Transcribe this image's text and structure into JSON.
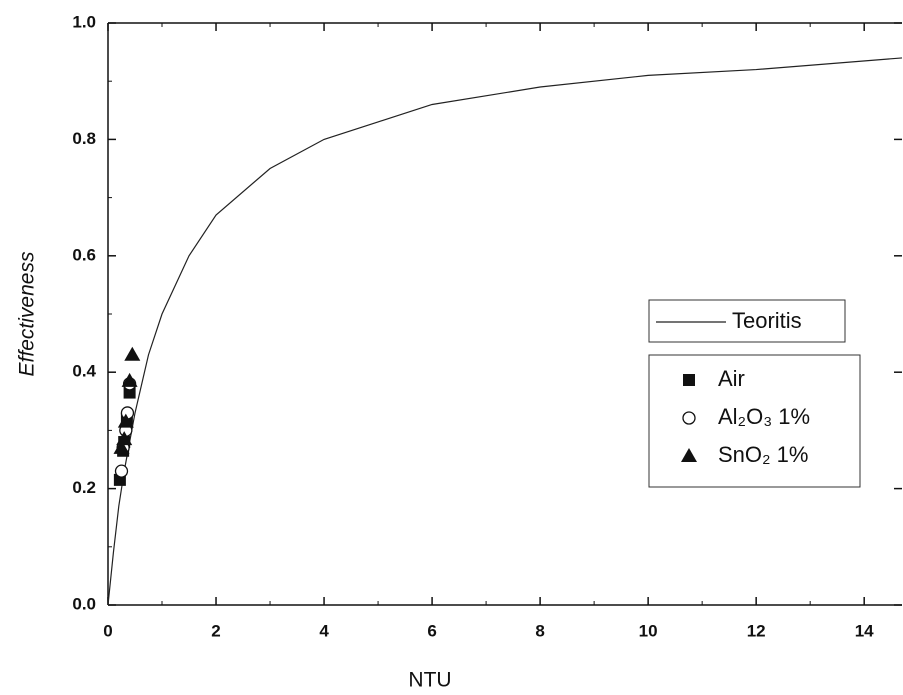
{
  "chart_data": {
    "type": "scatter",
    "x_label": "NTU",
    "y_label": "Effectiveness",
    "xlim": [
      0,
      14.7
    ],
    "ylim": [
      0,
      1.0
    ],
    "xticks": [
      0,
      2,
      4,
      6,
      8,
      10,
      12,
      14
    ],
    "yticks": [
      {
        "value": 0,
        "label": "0.0"
      },
      {
        "value": 0.2,
        "label": "0.2"
      },
      {
        "value": 0.4,
        "label": "0.4"
      },
      {
        "value": 0.6,
        "label": "0.6"
      },
      {
        "value": 0.8,
        "label": "0.8"
      },
      {
        "value": 1.0,
        "label": "1.0"
      }
    ],
    "series": [
      {
        "name": "Teoritis",
        "mode": "line",
        "color": "#222222",
        "x": [
          0,
          0.1,
          0.2,
          0.3,
          0.5,
          0.75,
          1,
          1.5,
          2,
          3,
          4,
          5,
          6,
          8,
          10,
          12,
          14.7
        ],
        "values": [
          0,
          0.09,
          0.17,
          0.23,
          0.33,
          0.43,
          0.5,
          0.6,
          0.67,
          0.75,
          0.8,
          0.83,
          0.86,
          0.89,
          0.91,
          0.92,
          0.94
        ]
      },
      {
        "name": "Air",
        "mode": "marker",
        "marker": "square",
        "color": "#111111",
        "x": [
          0.22,
          0.28,
          0.3,
          0.35,
          0.4
        ],
        "values": [
          0.215,
          0.265,
          0.28,
          0.32,
          0.365
        ]
      },
      {
        "name": "Al₂O₃ 1%",
        "mode": "marker",
        "marker": "circle",
        "color": "#111111",
        "x": [
          0.25,
          0.28,
          0.33,
          0.36,
          0.4
        ],
        "values": [
          0.23,
          0.27,
          0.3,
          0.33,
          0.38
        ]
      },
      {
        "name": "SnO₂ 1%",
        "mode": "marker",
        "marker": "triangle",
        "color": "#111111",
        "x": [
          0.25,
          0.3,
          0.33,
          0.4,
          0.45
        ],
        "values": [
          0.27,
          0.285,
          0.315,
          0.385,
          0.43
        ]
      }
    ]
  }
}
